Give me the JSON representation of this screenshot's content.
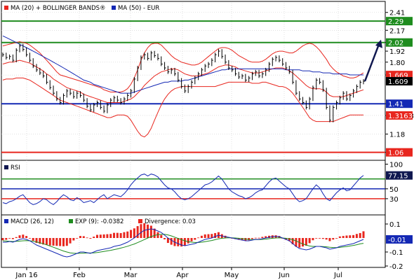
{
  "colors": {
    "red": "#e8261e",
    "green": "#1e8c1e",
    "blue": "#1428b4",
    "navy": "#101850",
    "bar": "#000000",
    "grid": "#cfcfcf"
  },
  "chart_data": [
    {
      "type": "line",
      "panel": "price",
      "legend": [
        {
          "label": "MA (20) + BOLLINGER BANDS®",
          "color": "#e8261e"
        },
        {
          "label": "MA (50) - EUR",
          "color": "#1428b4"
        }
      ],
      "y_ticks": [
        "2.41",
        "2.17",
        "2.02",
        "1.92",
        "1.80",
        "1.669",
        "1.41",
        "1.3163",
        "1.18",
        "1.06"
      ],
      "y_scale": "log",
      "ylim": [
        1.02,
        2.55
      ],
      "x_labels": [
        "Jan 16",
        "Feb",
        "Mar",
        "Apr",
        "May",
        "Jun",
        "Jul"
      ],
      "levels": [
        {
          "value": 2.29,
          "label": "2.29",
          "color": "#1e8c1e"
        },
        {
          "value": 2.02,
          "label": "2.02",
          "color": "#1e8c1e"
        },
        {
          "value": 1.41,
          "label": "1.41",
          "color": "#1428b4"
        },
        {
          "value": 1.06,
          "label": "1.06",
          "color": "#e8261e"
        }
      ],
      "value_tags": [
        {
          "value": 1.669,
          "label": "1.669",
          "color": "#e8261e"
        },
        {
          "value": 1.609,
          "label": "1.609",
          "color": "#000000"
        },
        {
          "value": 1.3163,
          "label": "1.3163",
          "color": "#e8261e"
        }
      ],
      "last_price": 1.609,
      "target": 2.02,
      "close": [
        1.88,
        1.85,
        1.86,
        1.82,
        1.93,
        1.98,
        1.94,
        1.88,
        1.82,
        1.76,
        1.72,
        1.69,
        1.66,
        1.6,
        1.55,
        1.5,
        1.45,
        1.42,
        1.48,
        1.52,
        1.5,
        1.47,
        1.5,
        1.48,
        1.44,
        1.39,
        1.36,
        1.4,
        1.42,
        1.38,
        1.35,
        1.4,
        1.44,
        1.46,
        1.44,
        1.42,
        1.45,
        1.48,
        1.52,
        1.63,
        1.74,
        1.85,
        1.88,
        1.84,
        1.9,
        1.87,
        1.84,
        1.78,
        1.74,
        1.7,
        1.72,
        1.68,
        1.62,
        1.56,
        1.52,
        1.56,
        1.6,
        1.64,
        1.68,
        1.72,
        1.76,
        1.78,
        1.82,
        1.88,
        1.92,
        1.86,
        1.8,
        1.74,
        1.72,
        1.68,
        1.65,
        1.66,
        1.62,
        1.64,
        1.68,
        1.7,
        1.66,
        1.68,
        1.72,
        1.78,
        1.83,
        1.85,
        1.82,
        1.78,
        1.74,
        1.7,
        1.6,
        1.5,
        1.45,
        1.42,
        1.38,
        1.45,
        1.55,
        1.62,
        1.6,
        1.53,
        1.38,
        1.28,
        1.38,
        1.42,
        1.46,
        1.5,
        1.45,
        1.48,
        1.52,
        1.56,
        1.6,
        1.609
      ],
      "ma20": [
        1.78,
        1.79,
        1.8,
        1.8,
        1.81,
        1.82,
        1.81,
        1.8,
        1.79,
        1.77,
        1.75,
        1.73,
        1.71,
        1.68,
        1.66,
        1.63,
        1.61,
        1.59,
        1.57,
        1.55,
        1.54,
        1.53,
        1.52,
        1.51,
        1.49,
        1.48,
        1.47,
        1.46,
        1.45,
        1.44,
        1.43,
        1.42,
        1.42,
        1.42,
        1.42,
        1.42,
        1.43,
        1.44,
        1.45,
        1.47,
        1.5,
        1.53,
        1.57,
        1.6,
        1.63,
        1.66,
        1.68,
        1.7,
        1.71,
        1.72,
        1.73,
        1.73,
        1.72,
        1.7,
        1.68,
        1.67,
        1.66,
        1.66,
        1.66,
        1.67,
        1.68,
        1.69,
        1.71,
        1.73,
        1.75,
        1.76,
        1.77,
        1.77,
        1.76,
        1.75,
        1.73,
        1.72,
        1.71,
        1.7,
        1.69,
        1.69,
        1.69,
        1.7,
        1.71,
        1.72,
        1.73,
        1.74,
        1.74,
        1.74,
        1.73,
        1.71,
        1.69,
        1.66,
        1.63,
        1.6,
        1.57,
        1.55,
        1.54,
        1.54,
        1.54,
        1.53,
        1.51,
        1.48,
        1.47,
        1.47,
        1.47,
        1.47,
        1.48,
        1.49,
        1.5,
        1.51,
        1.52,
        1.53
      ],
      "upper_band": [
        1.98,
        1.99,
        2,
        2.01,
        2.02,
        2.03,
        2.02,
        2.01,
        1.99,
        1.96,
        1.93,
        1.9,
        1.86,
        1.82,
        1.78,
        1.74,
        1.7,
        1.67,
        1.66,
        1.65,
        1.64,
        1.63,
        1.62,
        1.61,
        1.6,
        1.59,
        1.58,
        1.57,
        1.56,
        1.55,
        1.53,
        1.52,
        1.51,
        1.51,
        1.51,
        1.51,
        1.52,
        1.54,
        1.58,
        1.64,
        1.72,
        1.82,
        1.9,
        1.96,
        2,
        2.01,
        2.01,
        1.99,
        1.95,
        1.91,
        1.87,
        1.84,
        1.82,
        1.8,
        1.79,
        1.78,
        1.77,
        1.77,
        1.78,
        1.8,
        1.83,
        1.86,
        1.89,
        1.92,
        1.95,
        1.96,
        1.96,
        1.95,
        1.93,
        1.9,
        1.87,
        1.85,
        1.83,
        1.81,
        1.8,
        1.8,
        1.8,
        1.81,
        1.83,
        1.86,
        1.89,
        1.91,
        1.92,
        1.92,
        1.91,
        1.9,
        1.9,
        1.92,
        1.95,
        1.98,
        2.0,
        2.01,
        2.0,
        1.97,
        1.93,
        1.88,
        1.83,
        1.77,
        1.73,
        1.7,
        1.68,
        1.66,
        1.65,
        1.64,
        1.64,
        1.65,
        1.67,
        1.69
      ],
      "lower_band": [
        1.62,
        1.63,
        1.63,
        1.63,
        1.64,
        1.64,
        1.64,
        1.63,
        1.62,
        1.6,
        1.58,
        1.56,
        1.54,
        1.52,
        1.5,
        1.48,
        1.46,
        1.44,
        1.43,
        1.42,
        1.41,
        1.4,
        1.39,
        1.38,
        1.37,
        1.36,
        1.35,
        1.34,
        1.33,
        1.32,
        1.31,
        1.3,
        1.3,
        1.31,
        1.32,
        1.32,
        1.32,
        1.31,
        1.28,
        1.24,
        1.2,
        1.17,
        1.16,
        1.18,
        1.22,
        1.28,
        1.34,
        1.4,
        1.45,
        1.49,
        1.52,
        1.54,
        1.55,
        1.56,
        1.56,
        1.56,
        1.56,
        1.56,
        1.56,
        1.56,
        1.56,
        1.56,
        1.56,
        1.56,
        1.57,
        1.58,
        1.59,
        1.6,
        1.6,
        1.6,
        1.6,
        1.6,
        1.6,
        1.6,
        1.59,
        1.59,
        1.59,
        1.6,
        1.6,
        1.59,
        1.58,
        1.57,
        1.56,
        1.56,
        1.55,
        1.53,
        1.5,
        1.46,
        1.42,
        1.38,
        1.34,
        1.3,
        1.28,
        1.27,
        1.27,
        1.27,
        1.27,
        1.27,
        1.27,
        1.28,
        1.29,
        1.3,
        1.31,
        1.32,
        1.32,
        1.32,
        1.32,
        1.32
      ],
      "ma50": [
        2.1,
        2.08,
        2.06,
        2.04,
        2.02,
        2.0,
        1.98,
        1.96,
        1.94,
        1.92,
        1.9,
        1.88,
        1.86,
        1.84,
        1.82,
        1.8,
        1.78,
        1.76,
        1.74,
        1.72,
        1.7,
        1.68,
        1.66,
        1.64,
        1.62,
        1.61,
        1.6,
        1.58,
        1.57,
        1.56,
        1.55,
        1.54,
        1.53,
        1.52,
        1.51,
        1.5,
        1.5,
        1.5,
        1.5,
        1.51,
        1.52,
        1.53,
        1.54,
        1.55,
        1.56,
        1.57,
        1.58,
        1.59,
        1.6,
        1.6,
        1.61,
        1.61,
        1.61,
        1.61,
        1.62,
        1.62,
        1.63,
        1.64,
        1.65,
        1.66,
        1.67,
        1.68,
        1.69,
        1.7,
        1.71,
        1.72,
        1.72,
        1.73,
        1.73,
        1.73,
        1.73,
        1.73,
        1.73,
        1.73,
        1.73,
        1.73,
        1.73,
        1.73,
        1.73,
        1.73,
        1.73,
        1.73,
        1.73,
        1.73,
        1.72,
        1.72,
        1.72,
        1.72,
        1.72,
        1.71,
        1.71,
        1.71,
        1.7,
        1.7,
        1.7,
        1.69,
        1.69,
        1.69,
        1.68,
        1.68,
        1.68,
        1.68,
        1.68,
        1.67,
        1.67,
        1.67,
        1.67,
        1.67
      ]
    },
    {
      "type": "line",
      "panel": "rsi",
      "legend": [
        {
          "label": "RSI",
          "color": "#101850"
        }
      ],
      "y_ticks": [
        "100",
        "77.15",
        "50",
        "30"
      ],
      "ylim": [
        0,
        105
      ],
      "levels": [
        {
          "value": 70,
          "color": "#1e8c1e"
        },
        {
          "value": 50,
          "color": "#1428b4"
        },
        {
          "value": 30,
          "color": "#e8261e"
        }
      ],
      "value_tags": [
        {
          "value": 77.15,
          "label": "77.15",
          "color": "#101850"
        }
      ],
      "values": [
        22,
        20,
        24,
        26,
        30,
        35,
        38,
        30,
        22,
        18,
        20,
        24,
        30,
        28,
        22,
        18,
        24,
        32,
        38,
        34,
        28,
        26,
        32,
        28,
        22,
        24,
        26,
        22,
        28,
        34,
        38,
        30,
        34,
        38,
        36,
        34,
        40,
        48,
        58,
        66,
        72,
        78,
        80,
        76,
        80,
        78,
        74,
        66,
        58,
        52,
        50,
        44,
        36,
        30,
        28,
        30,
        34,
        40,
        46,
        52,
        58,
        60,
        64,
        70,
        76,
        70,
        60,
        50,
        44,
        40,
        36,
        34,
        30,
        32,
        36,
        42,
        46,
        48,
        56,
        64,
        70,
        72,
        66,
        60,
        54,
        50,
        40,
        30,
        24,
        26,
        30,
        40,
        50,
        58,
        52,
        40,
        30,
        26,
        34,
        42,
        48,
        52,
        46,
        48,
        56,
        64,
        72,
        77.15
      ]
    },
    {
      "type": "bar",
      "panel": "macd",
      "legend": [
        {
          "label": "MACD (26, 12)",
          "color": "#1428b4"
        },
        {
          "label": "EXP (9): -0.0382",
          "color": "#1e8c1e"
        },
        {
          "label": "Divergence: 0.03",
          "color": "#e8261e"
        }
      ],
      "y_ticks": [
        "0.1",
        "-0.01",
        "-0.1",
        "-0.2"
      ],
      "ylim": [
        -0.2,
        0.1
      ],
      "value_tags": [
        {
          "value": -0.01,
          "label": "-0.01",
          "color": "#1428b4"
        }
      ],
      "macd": [
        -0.03,
        -0.03,
        -0.025,
        -0.03,
        -0.02,
        -0.01,
        -0.005,
        -0.01,
        -0.02,
        -0.035,
        -0.05,
        -0.06,
        -0.07,
        -0.08,
        -0.09,
        -0.1,
        -0.11,
        -0.12,
        -0.13,
        -0.135,
        -0.13,
        -0.12,
        -0.11,
        -0.1,
        -0.1,
        -0.105,
        -0.11,
        -0.1,
        -0.09,
        -0.085,
        -0.08,
        -0.075,
        -0.07,
        -0.06,
        -0.055,
        -0.05,
        -0.04,
        -0.03,
        -0.015,
        0.0,
        0.02,
        0.04,
        0.055,
        0.06,
        0.065,
        0.06,
        0.05,
        0.04,
        0.02,
        0.0,
        -0.015,
        -0.03,
        -0.04,
        -0.05,
        -0.055,
        -0.05,
        -0.045,
        -0.04,
        -0.03,
        -0.02,
        -0.01,
        -0.005,
        0.0,
        0.01,
        0.02,
        0.015,
        0.01,
        0.005,
        0.0,
        -0.005,
        -0.01,
        -0.015,
        -0.02,
        -0.02,
        -0.015,
        -0.01,
        -0.01,
        -0.005,
        0.0,
        0.005,
        0.01,
        0.012,
        0.01,
        0.0,
        -0.01,
        -0.02,
        -0.04,
        -0.06,
        -0.075,
        -0.08,
        -0.085,
        -0.08,
        -0.07,
        -0.06,
        -0.06,
        -0.065,
        -0.07,
        -0.08,
        -0.075,
        -0.07,
        -0.06,
        -0.055,
        -0.05,
        -0.045,
        -0.04,
        -0.03,
        -0.02,
        -0.01
      ],
      "signal": [
        -0.02,
        -0.022,
        -0.024,
        -0.025,
        -0.024,
        -0.022,
        -0.02,
        -0.019,
        -0.02,
        -0.023,
        -0.028,
        -0.034,
        -0.041,
        -0.049,
        -0.057,
        -0.066,
        -0.075,
        -0.084,
        -0.093,
        -0.1,
        -0.106,
        -0.109,
        -0.11,
        -0.109,
        -0.108,
        -0.107,
        -0.107,
        -0.106,
        -0.104,
        -0.1,
        -0.096,
        -0.092,
        -0.088,
        -0.083,
        -0.078,
        -0.072,
        -0.066,
        -0.059,
        -0.051,
        -0.043,
        -0.033,
        -0.022,
        -0.011,
        0.0,
        0.01,
        0.018,
        0.024,
        0.027,
        0.026,
        0.022,
        0.015,
        0.006,
        -0.003,
        -0.012,
        -0.02,
        -0.026,
        -0.03,
        -0.032,
        -0.032,
        -0.03,
        -0.026,
        -0.022,
        -0.018,
        -0.012,
        -0.006,
        -0.002,
        0.0,
        0.001,
        0.001,
        0.0,
        -0.002,
        -0.005,
        -0.008,
        -0.01,
        -0.011,
        -0.011,
        -0.011,
        -0.01,
        -0.008,
        -0.005,
        -0.002,
        0.0,
        0.001,
        0.0,
        -0.002,
        -0.006,
        -0.012,
        -0.021,
        -0.032,
        -0.042,
        -0.051,
        -0.057,
        -0.06,
        -0.06,
        -0.06,
        -0.061,
        -0.063,
        -0.066,
        -0.068,
        -0.069,
        -0.067,
        -0.064,
        -0.061,
        -0.057,
        -0.053,
        -0.048,
        -0.042,
        -0.0382
      ],
      "divergence": [
        -0.01,
        -0.008,
        -0.001,
        -0.005,
        0.004,
        0.012,
        0.015,
        0.009,
        0.0,
        -0.012,
        -0.022,
        -0.026,
        -0.029,
        -0.031,
        -0.033,
        -0.034,
        -0.035,
        -0.036,
        -0.037,
        -0.035,
        -0.024,
        -0.011,
        0.0,
        0.009,
        0.008,
        0.002,
        -0.003,
        0.006,
        0.014,
        0.015,
        0.016,
        0.017,
        0.018,
        0.023,
        0.023,
        0.022,
        0.026,
        0.029,
        0.036,
        0.043,
        0.053,
        0.062,
        0.066,
        0.06,
        0.055,
        0.042,
        0.026,
        0.013,
        -0.006,
        -0.022,
        -0.03,
        -0.036,
        -0.037,
        -0.038,
        -0.035,
        -0.024,
        -0.015,
        -0.008,
        0.002,
        0.01,
        0.016,
        0.017,
        0.018,
        0.022,
        0.026,
        0.017,
        0.01,
        0.004,
        -0.001,
        -0.005,
        -0.008,
        -0.01,
        -0.012,
        -0.01,
        -0.004,
        0.001,
        0.001,
        0.005,
        0.008,
        0.01,
        0.012,
        0.012,
        0.009,
        0.0,
        -0.008,
        -0.014,
        -0.028,
        -0.039,
        -0.043,
        -0.038,
        -0.034,
        -0.023,
        -0.01,
        0.0,
        0.0,
        -0.004,
        -0.007,
        -0.014,
        -0.007,
        -0.001,
        0.007,
        0.009,
        0.011,
        0.012,
        0.013,
        0.018,
        0.022,
        0.03
      ]
    }
  ]
}
